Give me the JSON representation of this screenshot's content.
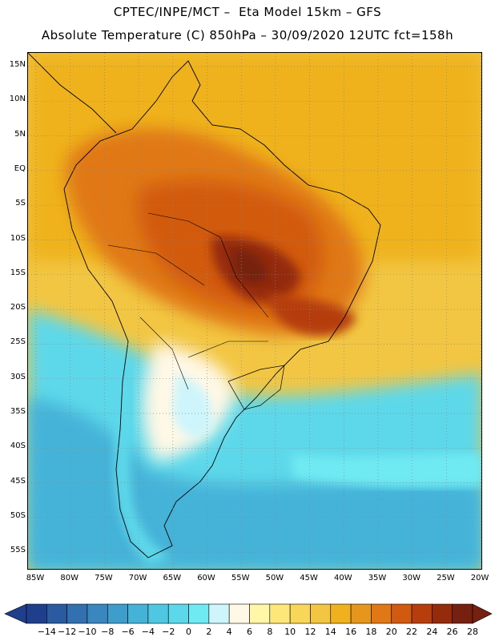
{
  "header": {
    "line1": "CPTEC/INPE/MCT –  Eta Model 15km – GFS",
    "line2": "Absolute Temperature (C) 850hPa – 30/09/2020 12UTC fct=158h"
  },
  "map": {
    "lat_labels": [
      "15N",
      "10N",
      "5N",
      "EQ",
      "5S",
      "10S",
      "15S",
      "20S",
      "25S",
      "30S",
      "35S",
      "40S",
      "45S",
      "50S",
      "55S"
    ],
    "lon_labels": [
      "85W",
      "80W",
      "75W",
      "70W",
      "65W",
      "60W",
      "55W",
      "50W",
      "45W",
      "40W",
      "35W",
      "30W",
      "25W",
      "20W"
    ],
    "grid_lines": "dotted"
  },
  "colorbar": {
    "labels": [
      "-14",
      "-12",
      "-10",
      "-8",
      "-6",
      "-4",
      "-2",
      "0",
      "2",
      "4",
      "6",
      "8",
      "10",
      "12",
      "14",
      "16",
      "18",
      "20",
      "22",
      "24",
      "26",
      "28"
    ],
    "colors": [
      "#1f3e8c",
      "#2a5aa0",
      "#3270b0",
      "#3a86bf",
      "#3f9dcc",
      "#45b2d8",
      "#4fc7e2",
      "#5dd8ea",
      "#6feaf2",
      "#cdf5fb",
      "#fff8e6",
      "#fff6a8",
      "#fde77a",
      "#f8d65a",
      "#f2c642",
      "#efb21e",
      "#e6961c",
      "#e07818",
      "#d25a10",
      "#b53e0c",
      "#942c0c",
      "#762010"
    ]
  }
}
